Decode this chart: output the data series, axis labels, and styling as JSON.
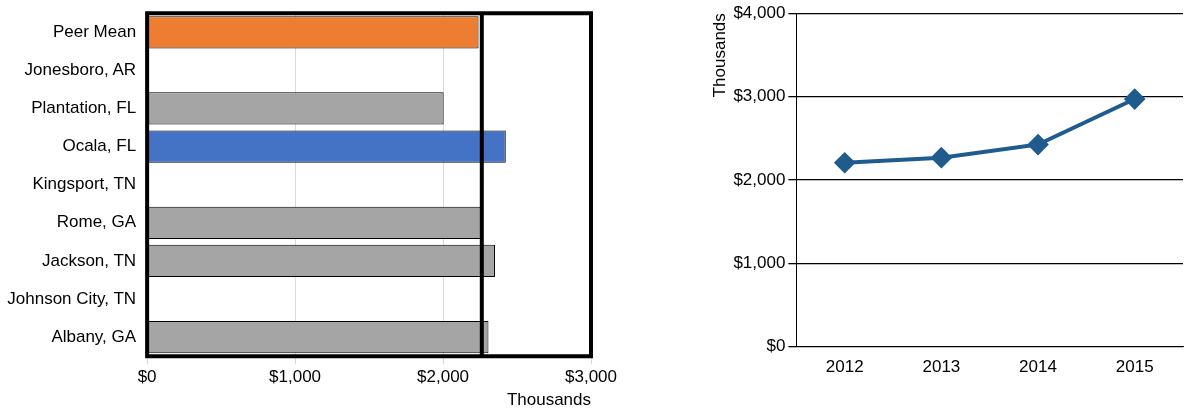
{
  "chart_data": [
    {
      "type": "bar",
      "orientation": "horizontal",
      "categories": [
        "Peer Mean",
        "Jonesboro, AR",
        "Plantation, FL",
        "Ocala, FL",
        "Kingsport, TN",
        "Rome, GA",
        "Jackson, TN",
        "Johnson City, TN",
        "Albany, GA"
      ],
      "values": [
        2240,
        null,
        2004,
        2424,
        null,
        2255,
        2351,
        null,
        2307
      ],
      "colors": [
        "#ed7d31",
        "#a5a5a5",
        "#a5a5a5",
        "#4472c4",
        "#a5a5a5",
        "#a5a5a5",
        "#a5a5a5",
        "#a5a5a5",
        "#a5a5a5"
      ],
      "xlim": [
        0,
        3000
      ],
      "xticks": [
        {
          "value": 0,
          "label": "$0"
        },
        {
          "value": 1000,
          "label": "$1,000"
        },
        {
          "value": 2000,
          "label": "$2,000"
        },
        {
          "value": 3000,
          "label": "$3,000"
        }
      ],
      "xlabel": "Thousands",
      "grid": "x",
      "legend": false,
      "ref_lines": [
        {
          "axis": "x",
          "value": 2262,
          "color": "#000000"
        }
      ]
    },
    {
      "type": "line",
      "categories": [
        "2012",
        "2013",
        "2014",
        "2015"
      ],
      "series": [
        {
          "color": "#1f5b8c",
          "values": [
            2206,
            2267,
            2424,
            2970
          ]
        }
      ],
      "ylim": [
        0,
        4000
      ],
      "yticks": [
        {
          "value": 0,
          "label": "$0"
        },
        {
          "value": 1000,
          "label": "$1,000"
        },
        {
          "value": 2000,
          "label": "$2,000"
        },
        {
          "value": 3000,
          "label": "$3,000"
        },
        {
          "value": 4000,
          "label": "$4,000"
        }
      ],
      "ylabel": "Thousands",
      "grid": "y",
      "legend": false,
      "marker": "diamond",
      "line_style": "solid"
    }
  ]
}
